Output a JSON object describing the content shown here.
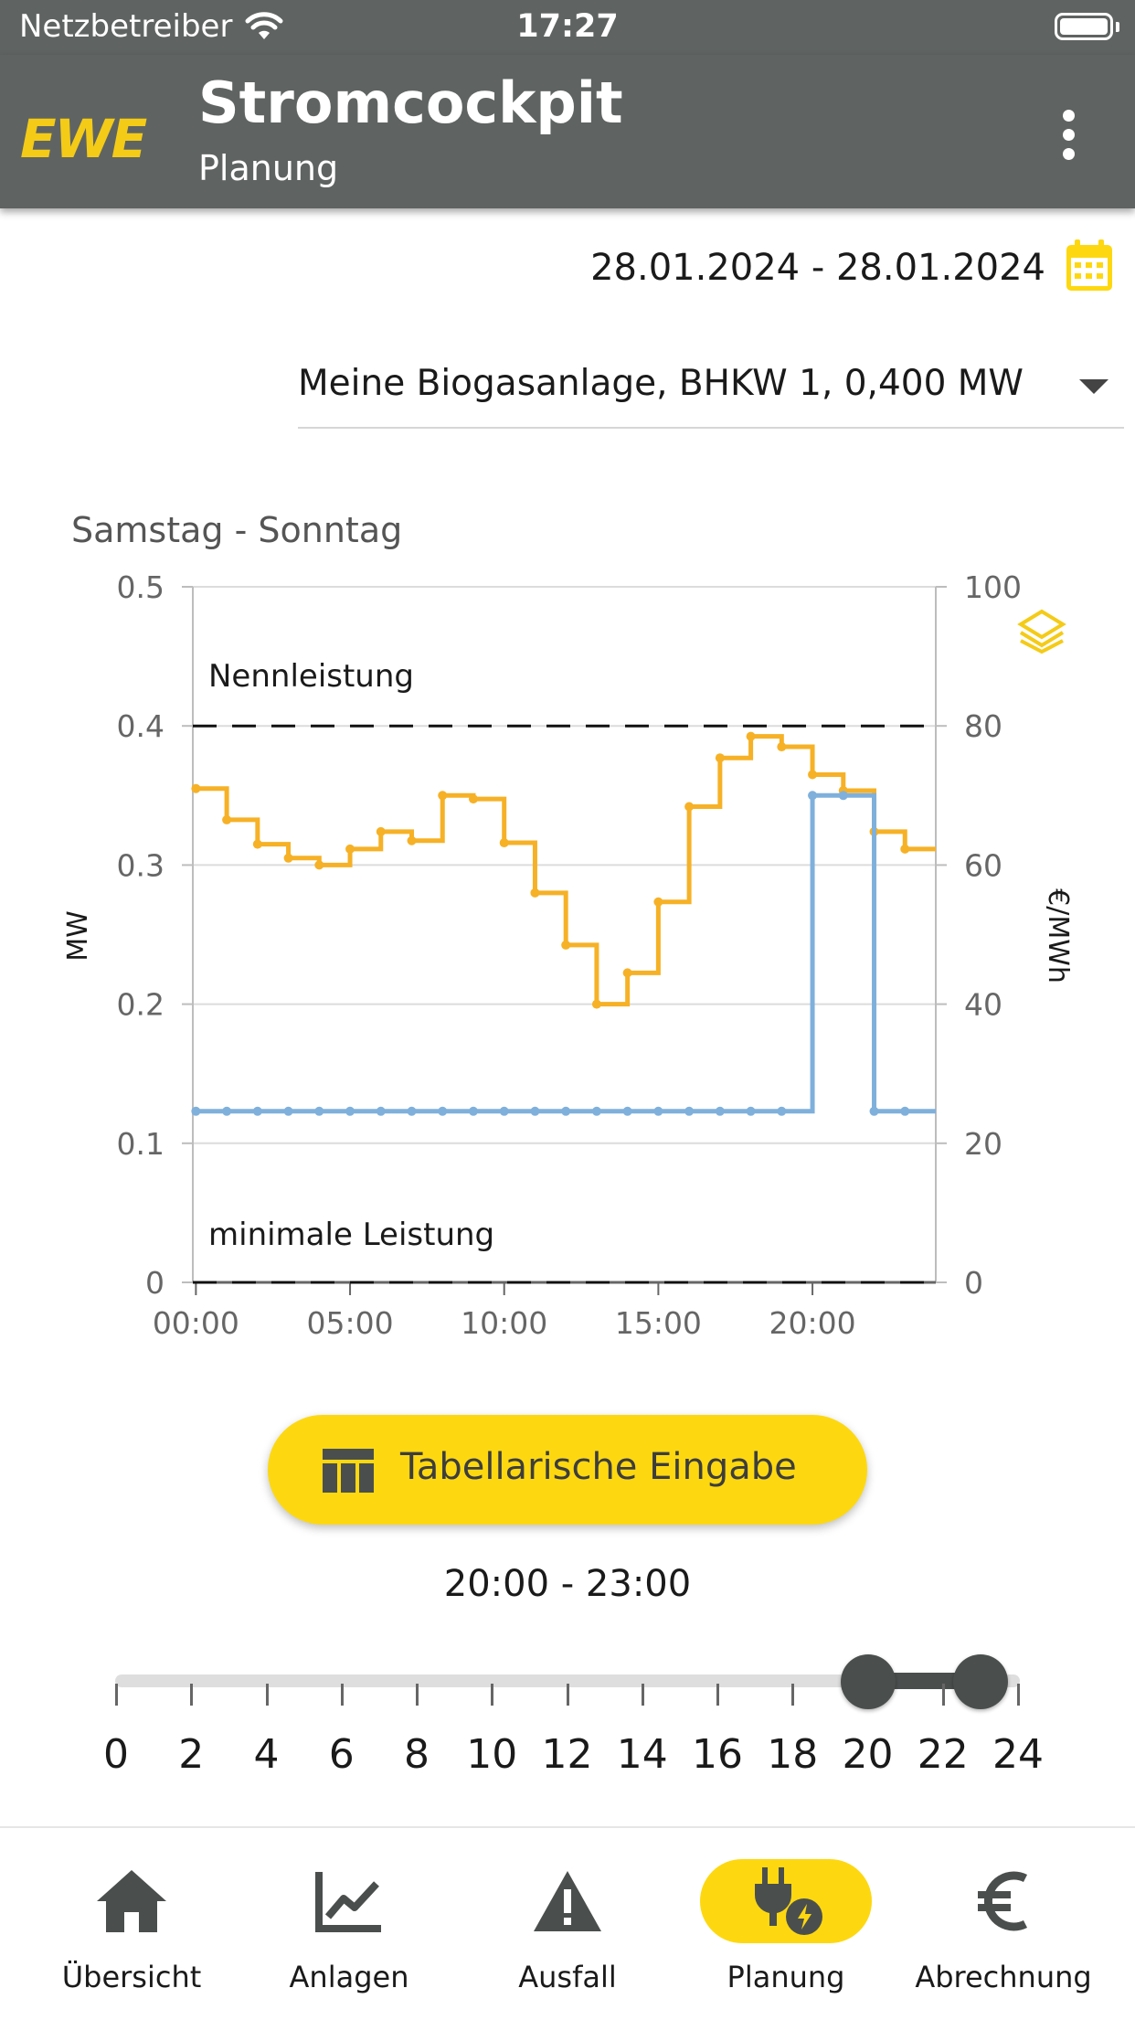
{
  "status_bar": {
    "carrier": "Netzbetreiber",
    "time": "17:27"
  },
  "app_bar": {
    "logo": "EWE",
    "title": "Stromcockpit",
    "subtitle": "Planung",
    "menu_icon": "more-vert-icon"
  },
  "date_range": "28.01.2024 - 28.01.2024",
  "plant_select": {
    "value": "Meine Biogasanlage, BHKW 1, 0,400 MW"
  },
  "chart_subtitle": "Samstag - Sonntag",
  "chart_data": {
    "type": "line",
    "title": "",
    "x_ticks": [
      0,
      5,
      10,
      15,
      20
    ],
    "x_tick_labels": [
      "00:00",
      "05:00",
      "10:00",
      "15:00",
      "20:00"
    ],
    "xlim": [
      -0.1,
      24
    ],
    "y_left": {
      "label": "MW",
      "lim": [
        0,
        0.5
      ],
      "ticks": [
        "0",
        "0.1",
        "0.2",
        "0.3",
        "0.4",
        "0.5"
      ]
    },
    "y_right": {
      "label": "€/MWh",
      "lim": [
        0,
        100
      ],
      "ticks": [
        "0",
        "20",
        "40",
        "60",
        "80",
        "100"
      ]
    },
    "grid": true,
    "annotations": [
      {
        "text": "Nennleistung",
        "y_mw": 0.4,
        "style": "dashed"
      },
      {
        "text": "minimale Leistung",
        "y_mw": 0.0,
        "style": "dashed"
      }
    ],
    "series": [
      {
        "axis": "right",
        "color": "#f6b126",
        "step": true,
        "x": [
          0,
          1,
          2,
          3,
          4,
          5,
          6,
          7,
          8,
          9,
          10,
          11,
          12,
          13,
          14,
          15,
          16,
          17,
          18,
          19,
          20,
          21,
          22,
          23
        ],
        "values": [
          71,
          66.5,
          63,
          61,
          60,
          62.3,
          64.8,
          63.5,
          70,
          69.5,
          63.2,
          56,
          48.5,
          40,
          44.5,
          54.7,
          68.4,
          75.4,
          78.5,
          77,
          73,
          70.7,
          64.8,
          62.3
        ]
      },
      {
        "axis": "left",
        "color": "#7fb0dc",
        "step": true,
        "x": [
          0,
          1,
          2,
          3,
          4,
          5,
          6,
          7,
          8,
          9,
          10,
          11,
          12,
          13,
          14,
          15,
          16,
          17,
          18,
          19,
          20,
          21,
          22,
          23
        ],
        "values": [
          0.123,
          0.123,
          0.123,
          0.123,
          0.123,
          0.123,
          0.123,
          0.123,
          0.123,
          0.123,
          0.123,
          0.123,
          0.123,
          0.123,
          0.123,
          0.123,
          0.123,
          0.123,
          0.123,
          0.123,
          0.35,
          0.35,
          0.123,
          0.123
        ]
      }
    ],
    "legend_icon": "layers-icon"
  },
  "table_button": {
    "label": "Tabellarische Eingabe",
    "icon": "table-icon"
  },
  "time_range": {
    "label": "20:00 - 23:00",
    "start": 20,
    "end": 23,
    "min": 0,
    "max": 24,
    "tick_labels": [
      "0",
      "2",
      "4",
      "6",
      "8",
      "10",
      "12",
      "14",
      "16",
      "18",
      "20",
      "22",
      "24"
    ]
  },
  "bottom_nav": {
    "items": [
      {
        "label": "Übersicht",
        "icon": "home-icon",
        "active": false
      },
      {
        "label": "Anlagen",
        "icon": "chart-line-icon",
        "active": false
      },
      {
        "label": "Ausfall",
        "icon": "warning-icon",
        "active": false
      },
      {
        "label": "Planung",
        "icon": "plug-bolt-icon",
        "active": true
      },
      {
        "label": "Abrechnung",
        "icon": "euro-icon",
        "active": false
      }
    ]
  },
  "colors": {
    "accent": "#fdd810",
    "header": "#5f6462",
    "price_line": "#f6b126",
    "power_line": "#7fb0dc"
  }
}
